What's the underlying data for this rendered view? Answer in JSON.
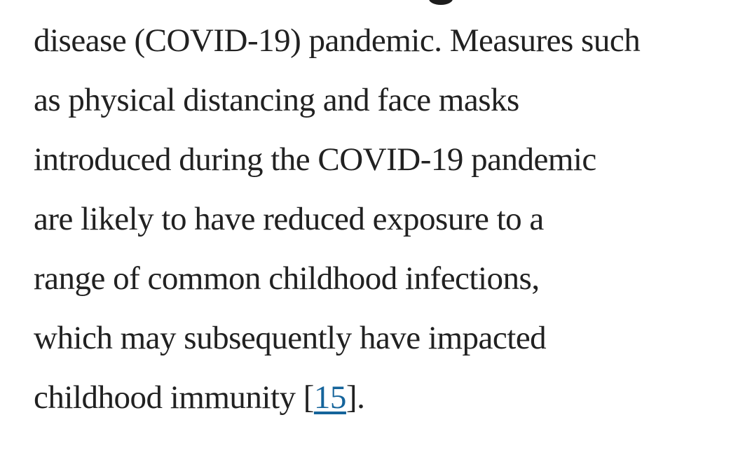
{
  "page": {
    "background_color": "#ffffff",
    "text_color": "#212121",
    "link_color": "#15649b"
  },
  "article": {
    "lines": [
      "disease (COVID-19) pandemic. Measures such",
      "as physical distancing and face masks",
      "introduced during the COVID-19 pandemic",
      "are likely to have reduced exposure to a",
      "range of common childhood infections,",
      "which may subsequently have impacted"
    ],
    "final_line": {
      "before_link": "childhood immunity [",
      "link": "15",
      "after_link": "]."
    }
  }
}
